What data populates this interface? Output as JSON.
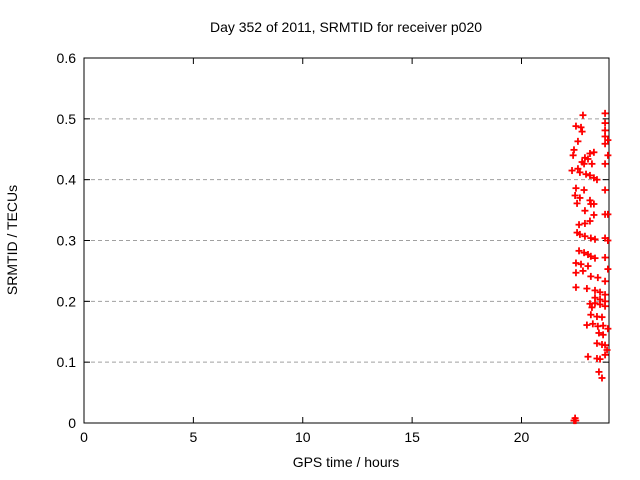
{
  "chart_data": {
    "type": "scatter",
    "title": "Day 352 of 2011, SRMTID for receiver p020",
    "xlabel": "GPS time / hours",
    "ylabel": "SRMTID / TECUs",
    "xlim": [
      0,
      24
    ],
    "ylim": [
      0,
      0.6
    ],
    "xticks": {
      "values": [
        0,
        5,
        10,
        15,
        20
      ],
      "labels": [
        "0",
        "5",
        "10",
        "15",
        "20"
      ]
    },
    "yticks": {
      "values": [
        0,
        0.1,
        0.2,
        0.3,
        0.4,
        0.5,
        0.6
      ],
      "labels": [
        "0",
        "0.1",
        "0.2",
        "0.3",
        "0.4",
        "0.5",
        "0.6"
      ]
    },
    "grid": "horizontal-dashed-at-yticks",
    "legend": "none",
    "marker": "plus",
    "marker_color": "#ff0000",
    "grid_color": "#a0a0a0",
    "axis_color": "#000000",
    "background": "#ffffff",
    "points": [
      [
        22.81,
        0.506
      ],
      [
        23.82,
        0.509
      ],
      [
        23.82,
        0.493
      ],
      [
        22.49,
        0.488
      ],
      [
        22.72,
        0.486
      ],
      [
        22.77,
        0.479
      ],
      [
        23.82,
        0.481
      ],
      [
        23.82,
        0.471
      ],
      [
        22.58,
        0.463
      ],
      [
        23.82,
        0.459
      ],
      [
        22.4,
        0.449
      ],
      [
        23.31,
        0.445
      ],
      [
        23.13,
        0.443
      ],
      [
        22.9,
        0.436
      ],
      [
        23.04,
        0.434
      ],
      [
        22.77,
        0.429
      ],
      [
        22.86,
        0.426
      ],
      [
        23.22,
        0.426
      ],
      [
        23.82,
        0.426
      ],
      [
        22.58,
        0.418
      ],
      [
        22.36,
        0.44
      ],
      [
        22.31,
        0.415
      ],
      [
        22.67,
        0.412
      ],
      [
        22.95,
        0.409
      ],
      [
        23.13,
        0.407
      ],
      [
        23.31,
        0.403
      ],
      [
        23.45,
        0.4
      ],
      [
        22.49,
        0.386
      ],
      [
        22.86,
        0.383
      ],
      [
        23.82,
        0.383
      ],
      [
        22.45,
        0.374
      ],
      [
        22.67,
        0.37
      ],
      [
        23.13,
        0.366
      ],
      [
        23.31,
        0.36
      ],
      [
        22.54,
        0.361
      ],
      [
        23.17,
        0.36
      ],
      [
        22.9,
        0.349
      ],
      [
        23.31,
        0.342
      ],
      [
        23.82,
        0.343
      ],
      [
        22.63,
        0.326
      ],
      [
        22.9,
        0.328
      ],
      [
        23.13,
        0.332
      ],
      [
        22.54,
        0.313
      ],
      [
        22.67,
        0.31
      ],
      [
        22.9,
        0.307
      ],
      [
        23.17,
        0.304
      ],
      [
        23.36,
        0.302
      ],
      [
        23.82,
        0.304
      ],
      [
        22.63,
        0.283
      ],
      [
        22.86,
        0.28
      ],
      [
        23.04,
        0.277
      ],
      [
        23.17,
        0.274
      ],
      [
        23.36,
        0.271
      ],
      [
        23.82,
        0.272
      ],
      [
        22.49,
        0.263
      ],
      [
        22.72,
        0.261
      ],
      [
        23.04,
        0.258
      ],
      [
        22.49,
        0.247
      ],
      [
        22.81,
        0.25
      ],
      [
        23.17,
        0.241
      ],
      [
        23.49,
        0.239
      ],
      [
        23.82,
        0.233
      ],
      [
        22.49,
        0.223
      ],
      [
        22.99,
        0.221
      ],
      [
        23.36,
        0.218
      ],
      [
        23.59,
        0.215
      ],
      [
        23.82,
        0.211
      ],
      [
        23.36,
        0.206
      ],
      [
        23.59,
        0.203
      ],
      [
        23.82,
        0.2
      ],
      [
        23.22,
        0.19
      ],
      [
        23.13,
        0.196
      ],
      [
        23.36,
        0.197
      ],
      [
        23.59,
        0.195
      ],
      [
        23.82,
        0.192
      ],
      [
        23.17,
        0.178
      ],
      [
        23.45,
        0.175
      ],
      [
        23.68,
        0.174
      ],
      [
        22.99,
        0.161
      ],
      [
        23.26,
        0.163
      ],
      [
        23.49,
        0.159
      ],
      [
        23.73,
        0.16
      ],
      [
        23.54,
        0.148
      ],
      [
        23.73,
        0.145
      ],
      [
        23.45,
        0.131
      ],
      [
        23.68,
        0.129
      ],
      [
        23.82,
        0.128
      ],
      [
        23.04,
        0.109
      ],
      [
        23.45,
        0.106
      ],
      [
        23.59,
        0.105
      ],
      [
        23.82,
        0.112
      ],
      [
        23.54,
        0.084
      ],
      [
        23.68,
        0.074
      ],
      [
        23.95,
        0.155
      ],
      [
        23.95,
        0.253
      ],
      [
        23.95,
        0.3
      ],
      [
        23.95,
        0.343
      ],
      [
        23.91,
        0.12
      ],
      [
        23.95,
        0.465
      ],
      [
        23.95,
        0.44
      ],
      [
        22.4,
        0.004
      ],
      [
        22.43,
        0.004
      ],
      [
        22.45,
        0.008
      ],
      [
        22.48,
        0.004
      ]
    ]
  }
}
